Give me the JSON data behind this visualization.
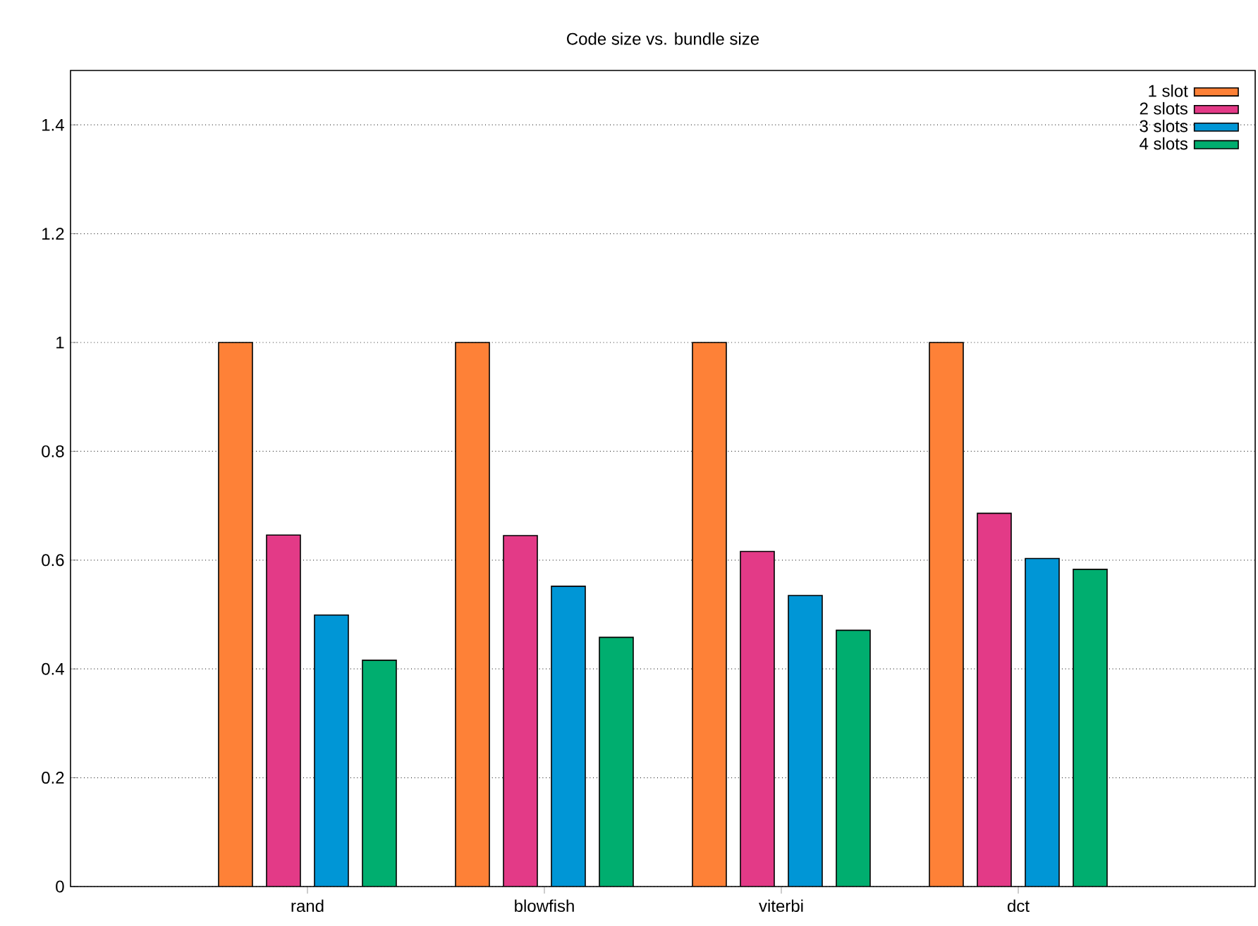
{
  "chart_data": {
    "type": "bar",
    "title": "Code size vs. bundle size",
    "categories": [
      "rand",
      "blowfish",
      "viterbi",
      "dct"
    ],
    "series": [
      {
        "name": "1 slot",
        "color": "#fe8137",
        "values": [
          1,
          1,
          1,
          1
        ]
      },
      {
        "name": "2 slots",
        "color": "#e33a87",
        "values": [
          0.646,
          0.645,
          0.616,
          0.686
        ]
      },
      {
        "name": "3 slots",
        "color": "#0096d6",
        "values": [
          0.499,
          0.552,
          0.535,
          0.603
        ]
      },
      {
        "name": "4 slots",
        "color": "#00ae6f",
        "values": [
          0.416,
          0.458,
          0.471,
          0.583
        ]
      }
    ],
    "ylim": [
      0,
      1.5
    ],
    "yticks": [
      0,
      0.2,
      0.4,
      0.6,
      0.8,
      1,
      1.2,
      1.4
    ],
    "grid": "y",
    "legend": "top right"
  }
}
